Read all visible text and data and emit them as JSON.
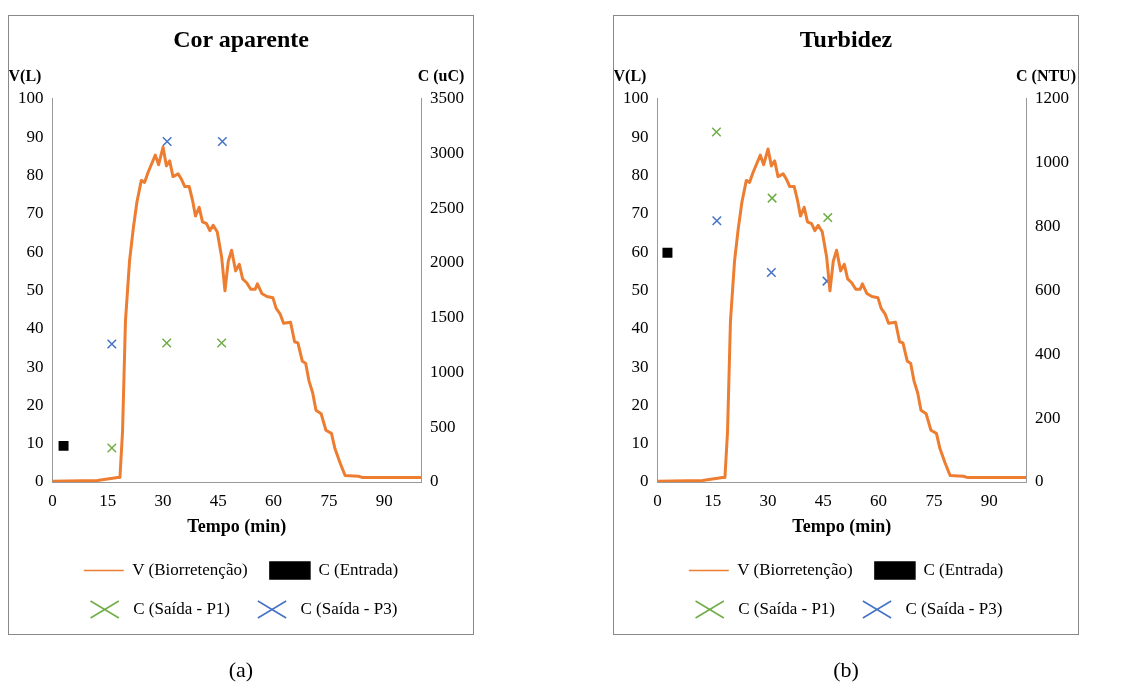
{
  "chart_data": [
    {
      "type": "line",
      "title": "Cor aparente",
      "xlabel": "Tempo (min)",
      "ylabel": "V(L)",
      "y2label": "C (uC)",
      "xlim": [
        0,
        100
      ],
      "xticks": [
        0,
        15,
        30,
        45,
        60,
        75,
        90
      ],
      "ylim": [
        0,
        100
      ],
      "yticks": [
        0,
        10,
        20,
        30,
        40,
        50,
        60,
        70,
        80,
        90,
        100
      ],
      "y2lim": [
        0,
        3500
      ],
      "y2ticks": [
        0,
        500,
        1000,
        1500,
        2000,
        2500,
        3000,
        3500
      ],
      "legend": "bottom",
      "annotations": [
        "(a)"
      ],
      "series": [
        {
          "name": "V (Biorretenção)",
          "type": "line",
          "color": "#ed7d31",
          "marker": "none",
          "x": [
            0,
            12.2,
            14.9,
            17.7,
            18.3,
            19.0,
            19.8,
            20.9,
            21.9,
            22.9,
            24.1,
            25.0,
            25.9,
            26.8,
            27.9,
            28.8,
            30.0,
            30.9,
            31.8,
            32.7,
            34.1,
            35.0,
            35.9,
            37.1,
            38.0,
            38.8,
            39.8,
            40.7,
            41.8,
            42.7,
            43.6,
            44.7,
            45.9,
            46.8,
            47.7,
            48.6,
            49.7,
            50.7,
            51.6,
            52.7,
            53.8,
            55.0,
            55.6,
            56.8,
            58.2,
            59.8,
            60.7,
            61.8,
            62.7,
            64.6,
            65.7,
            66.6,
            67.8,
            68.7,
            69.6,
            70.6,
            71.5,
            72.9,
            74.2,
            75.7,
            76.6,
            78.0,
            79.4,
            83.0,
            84.0,
            100
          ],
          "values": [
            0.2,
            0.4,
            0.8,
            1.2,
            1.2,
            13,
            42,
            57.6,
            66,
            73,
            78.7,
            78.2,
            80.7,
            82.8,
            85.3,
            82.8,
            87.4,
            82.5,
            83.8,
            79.7,
            80.4,
            79,
            77.1,
            77.1,
            73.5,
            69.4,
            71.7,
            67.9,
            67.4,
            65.6,
            67,
            65.3,
            58.7,
            49.9,
            57.6,
            60.5,
            55.1,
            56.8,
            53,
            52,
            50.3,
            50.3,
            51.7,
            49.2,
            48.4,
            48.1,
            45.3,
            43.8,
            41.4,
            41.7,
            36.6,
            36.3,
            31.5,
            31,
            26.4,
            23.3,
            18.7,
            17.8,
            13.5,
            12.7,
            8.9,
            5.1,
            1.7,
            1.5,
            1.2,
            1.2
          ]
        },
        {
          "name": "C (Entrada)",
          "type": "scatter",
          "axis": "y2",
          "color": "#000000",
          "marker": "square",
          "x": [
            3.0
          ],
          "values": [
            330
          ]
        },
        {
          "name": "C (Saída - P1)",
          "type": "scatter",
          "axis": "y2",
          "color": "#70ad47",
          "marker": "cross",
          "x": [
            16.1,
            31.0,
            45.9
          ],
          "values": [
            310,
            1270,
            1270
          ]
        },
        {
          "name": "C (Saída - P3)",
          "type": "scatter",
          "axis": "y2",
          "color": "#4472c4",
          "marker": "cross",
          "x": [
            16.1,
            31.1,
            46.1
          ],
          "values": [
            1260,
            3110,
            3110
          ]
        }
      ]
    },
    {
      "type": "line",
      "title": "Turbidez",
      "xlabel": "Tempo (min)",
      "ylabel": "V(L)",
      "y2label": "C (NTU)",
      "xlim": [
        0,
        100
      ],
      "xticks": [
        0,
        15,
        30,
        45,
        60,
        75,
        90
      ],
      "ylim": [
        0,
        100
      ],
      "yticks": [
        0,
        10,
        20,
        30,
        40,
        50,
        60,
        70,
        80,
        90,
        100
      ],
      "y2lim": [
        0,
        1200
      ],
      "y2ticks": [
        0,
        200,
        400,
        600,
        800,
        1000,
        1200
      ],
      "legend": "bottom",
      "annotations": [
        "(b)"
      ],
      "series": [
        {
          "name": "V (Biorretenção)",
          "type": "line",
          "color": "#ed7d31",
          "marker": "none",
          "x": [
            0,
            12.2,
            14.9,
            17.7,
            18.3,
            19.0,
            19.8,
            20.9,
            21.9,
            22.9,
            24.1,
            25.0,
            25.9,
            26.8,
            27.9,
            28.8,
            30.0,
            30.9,
            31.8,
            32.7,
            34.1,
            35.0,
            35.9,
            37.1,
            38.0,
            38.8,
            39.8,
            40.7,
            41.8,
            42.7,
            43.6,
            44.7,
            45.9,
            46.8,
            47.7,
            48.6,
            49.7,
            50.7,
            51.6,
            52.7,
            53.8,
            55.0,
            55.6,
            56.8,
            58.2,
            59.8,
            60.7,
            61.8,
            62.7,
            64.6,
            65.7,
            66.6,
            67.8,
            68.7,
            69.6,
            70.6,
            71.5,
            72.9,
            74.2,
            75.7,
            76.6,
            78.0,
            79.4,
            83.0,
            84.0,
            100
          ],
          "values": [
            0.2,
            0.4,
            0.8,
            1.2,
            1.2,
            13,
            42,
            57.6,
            66,
            73,
            78.7,
            78.2,
            80.7,
            82.8,
            85.3,
            82.8,
            86.9,
            82.5,
            83.8,
            79.7,
            80.4,
            79,
            77.1,
            77.1,
            73.5,
            69.4,
            71.7,
            67.9,
            67.4,
            65.6,
            67,
            65.3,
            58.7,
            49.9,
            57.6,
            60.5,
            55.1,
            56.8,
            53,
            52,
            50.3,
            50.3,
            51.7,
            49.2,
            48.4,
            48.1,
            45.3,
            43.8,
            41.4,
            41.7,
            36.6,
            36.3,
            31.5,
            31,
            26.4,
            23.3,
            18.7,
            17.8,
            13.5,
            12.7,
            8.9,
            5.1,
            1.7,
            1.5,
            1.2,
            1.2
          ]
        },
        {
          "name": "C (Entrada)",
          "type": "scatter",
          "axis": "y2",
          "color": "#000000",
          "marker": "square",
          "x": [
            2.7
          ],
          "values": [
            718
          ]
        },
        {
          "name": "C (Saída - P1)",
          "type": "scatter",
          "axis": "y2",
          "color": "#70ad47",
          "marker": "cross",
          "x": [
            16.0,
            31.1,
            46.2
          ],
          "values": [
            1096,
            889,
            828
          ]
        },
        {
          "name": "C (Saída - P3)",
          "type": "scatter",
          "axis": "y2",
          "color": "#4472c4",
          "marker": "cross",
          "x": [
            16.1,
            30.9,
            46.0
          ],
          "values": [
            818,
            656,
            629
          ]
        }
      ]
    }
  ]
}
